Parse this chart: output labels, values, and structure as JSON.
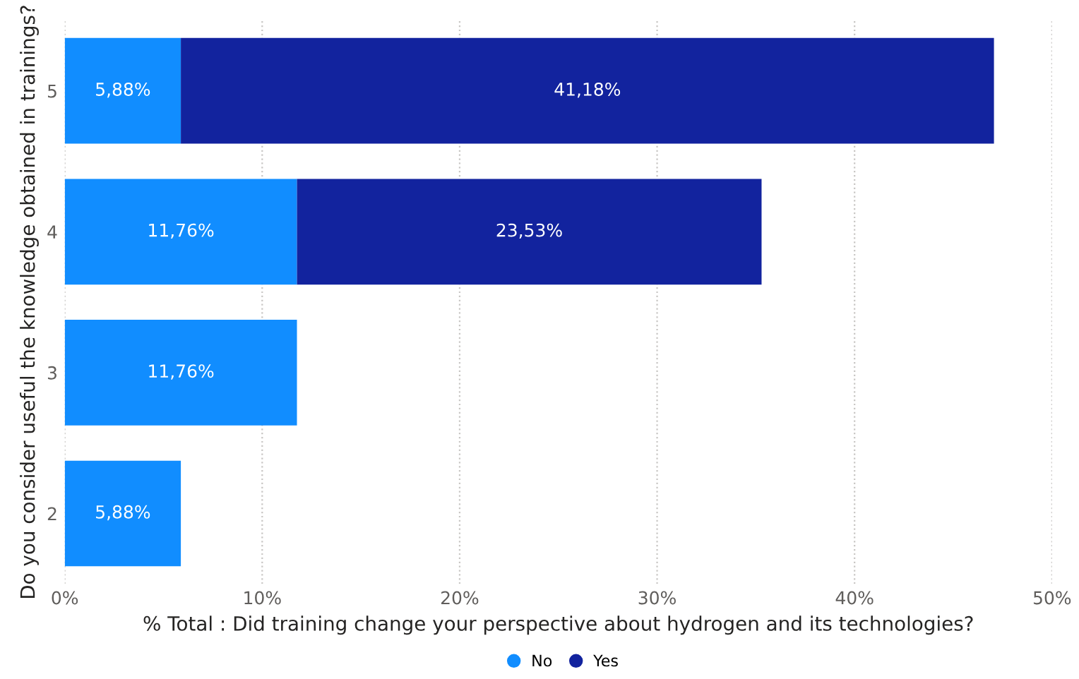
{
  "chart_data": {
    "type": "bar",
    "orientation": "horizontal",
    "stacked": true,
    "categories": [
      "5",
      "4",
      "3",
      "2"
    ],
    "series": [
      {
        "name": "No",
        "color": "#118dff",
        "values": [
          5.88,
          11.76,
          11.76,
          5.88
        ],
        "value_labels": [
          "5,88%",
          "11,76%",
          "11,76%",
          "5,88%"
        ]
      },
      {
        "name": "Yes",
        "color": "#12239e",
        "values": [
          41.18,
          23.53,
          null,
          null
        ],
        "value_labels": [
          "41,18%",
          "23,53%",
          null,
          null
        ]
      }
    ],
    "xlabel": "% Total : Did training change your perspective about hydrogen and its technologies?",
    "ylabel": "Do you consider useful the knowledge obtained in trainings?",
    "xlim": [
      0,
      50
    ],
    "xticks": [
      {
        "value": 0,
        "label": "0%"
      },
      {
        "value": 10,
        "label": "10%"
      },
      {
        "value": 20,
        "label": "20%"
      },
      {
        "value": 30,
        "label": "30%"
      },
      {
        "value": 40,
        "label": "40%"
      },
      {
        "value": 50,
        "label": "50%"
      }
    ],
    "grid": "x",
    "legend": "bottom"
  }
}
